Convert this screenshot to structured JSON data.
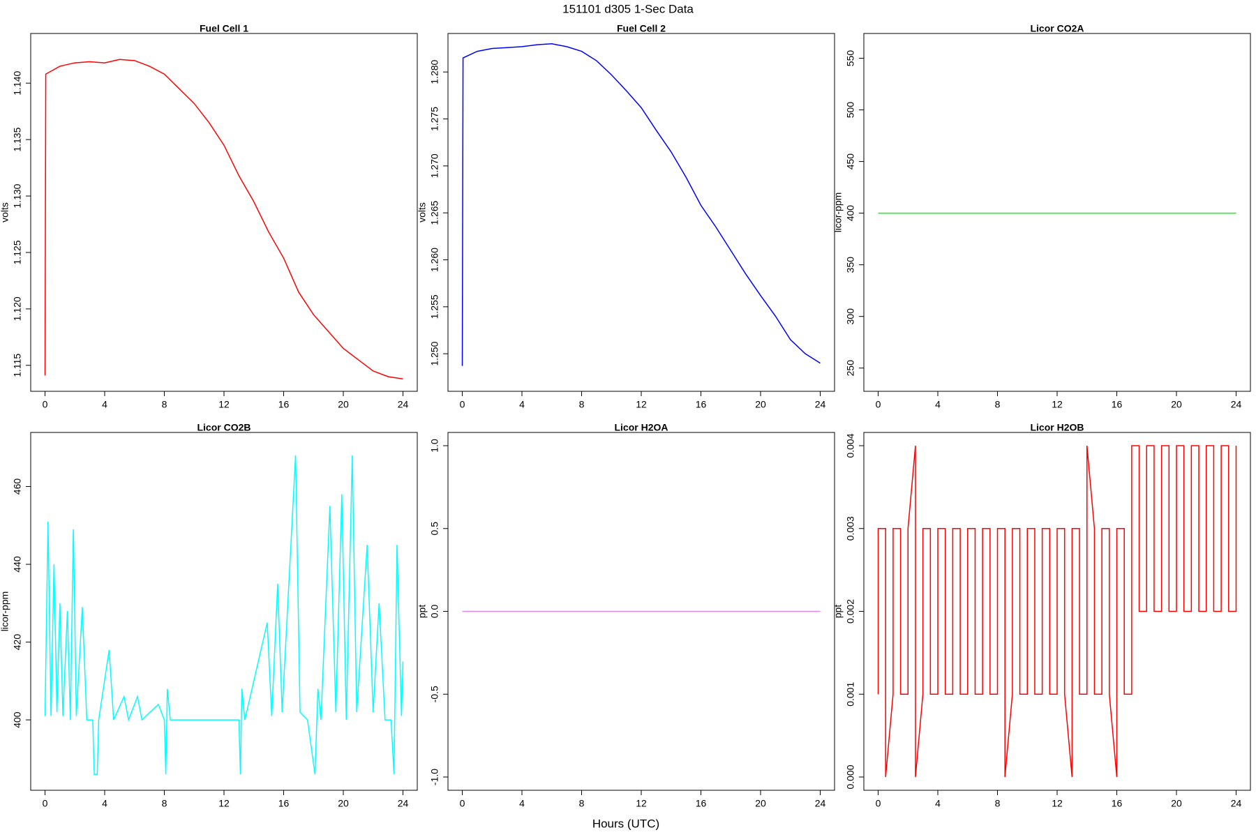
{
  "title": "151101   d305   1-Sec Data",
  "xlabel": "Hours (UTC)",
  "chart_data": [
    {
      "type": "line",
      "title": "Fuel Cell 1",
      "ylabel": "volts",
      "color": "#ff0000",
      "x": [
        0,
        0.05,
        1,
        2,
        3,
        4,
        5,
        6,
        7,
        8,
        9,
        10,
        11,
        12,
        13,
        14,
        15,
        16,
        17,
        18,
        19,
        20,
        21,
        22,
        23,
        24
      ],
      "values": [
        1.1141,
        1.1408,
        1.1415,
        1.1418,
        1.1419,
        1.1418,
        1.1421,
        1.142,
        1.1415,
        1.1408,
        1.1395,
        1.1382,
        1.1365,
        1.1345,
        1.1318,
        1.1295,
        1.1268,
        1.1245,
        1.1215,
        1.1195,
        1.118,
        1.1165,
        1.1155,
        1.1145,
        1.114,
        1.1138
      ],
      "xlim": [
        -0.96,
        24.96
      ],
      "xticks": [
        0,
        4,
        8,
        12,
        16,
        20,
        24
      ],
      "ylim": [
        1.1127,
        1.1444
      ],
      "yticks": [
        1.115,
        {
          "value": 1.12,
          "label": "1.120"
        },
        1.125,
        {
          "value": 1.13,
          "label": "1.130"
        },
        1.135,
        {
          "value": 1.14,
          "label": "1.140"
        }
      ]
    },
    {
      "type": "line",
      "title": "Fuel Cell 2",
      "ylabel": "volts",
      "color": "#0000ff",
      "x": [
        0,
        0.05,
        1,
        2,
        3,
        4,
        5,
        6,
        7,
        8,
        9,
        10,
        11,
        12,
        13,
        14,
        15,
        16,
        17,
        18,
        19,
        20,
        21,
        22,
        23,
        24
      ],
      "values": [
        1.2487,
        1.2815,
        1.2822,
        1.2825,
        1.2826,
        1.2827,
        1.2829,
        1.283,
        1.2827,
        1.2822,
        1.2812,
        1.2797,
        1.278,
        1.2762,
        1.2738,
        1.2715,
        1.2688,
        1.2658,
        1.2635,
        1.261,
        1.2585,
        1.2562,
        1.254,
        1.2515,
        1.25,
        1.249
      ],
      "xlim": [
        -0.96,
        24.96
      ],
      "xticks": [
        0,
        4,
        8,
        12,
        16,
        20,
        24
      ],
      "ylim": [
        1.246,
        1.2841
      ],
      "yticks": [
        {
          "value": 1.25,
          "label": "1.250"
        },
        1.255,
        {
          "value": 1.26,
          "label": "1.260"
        },
        1.265,
        {
          "value": 1.27,
          "label": "1.270"
        },
        1.275,
        {
          "value": 1.28,
          "label": "1.280"
        }
      ]
    },
    {
      "type": "line",
      "title": "Licor CO2A",
      "ylabel": "licor-ppm",
      "color": "#00ff00",
      "x": [
        0,
        24
      ],
      "values": [
        400,
        400
      ],
      "xlim": [
        -0.96,
        24.96
      ],
      "xticks": [
        0,
        4,
        8,
        12,
        16,
        20,
        24
      ],
      "ylim": [
        227.5,
        574
      ],
      "yticks": [
        250,
        300,
        350,
        400,
        450,
        500,
        550
      ]
    },
    {
      "type": "line",
      "title": "Licor CO2B",
      "ylabel": "licor-ppm",
      "color": "#00ffff",
      "x": [
        0,
        0.2,
        0.4,
        0.6,
        0.8,
        1,
        1.2,
        1.5,
        1.7,
        1.9,
        2.1,
        2.5,
        2.8,
        3.2,
        3.3,
        3.5,
        3.6,
        4.3,
        4.6,
        5.3,
        5.6,
        6.2,
        6.5,
        7.6,
        8,
        8.1,
        8.2,
        8.4,
        13,
        13.1,
        13.2,
        13.4,
        14.9,
        15.2,
        15.6,
        15.9,
        16.8,
        17.1,
        17.6,
        18.1,
        18.3,
        18.5,
        19.1,
        19.5,
        19.9,
        20.2,
        20.6,
        20.9,
        21.6,
        22,
        22.4,
        22.8,
        23.2,
        23.4,
        23.6,
        23.9,
        24
      ],
      "values": [
        401,
        451,
        401,
        440,
        402,
        430,
        401,
        428,
        400,
        449,
        401,
        429,
        400,
        400,
        386,
        386,
        400,
        418,
        400,
        406,
        400,
        406,
        400,
        404,
        400,
        386,
        408,
        400,
        400,
        386,
        408,
        400,
        425,
        401,
        435,
        402,
        468,
        402,
        400,
        386,
        408,
        400,
        455,
        402,
        458,
        400,
        468,
        402,
        445,
        402,
        430,
        400,
        400,
        386,
        445,
        401,
        415
      ],
      "xlim": [
        -0.96,
        24.96
      ],
      "xticks": [
        0,
        4,
        8,
        12,
        16,
        20,
        24
      ],
      "ylim": [
        381.9,
        473.9
      ],
      "yticks": [
        400,
        420,
        440,
        460
      ]
    },
    {
      "type": "line",
      "title": "Licor H2OA",
      "ylabel": "ppt",
      "color": "#dd88ee",
      "x": [
        0,
        24
      ],
      "values": [
        0,
        0
      ],
      "xlim": [
        -0.96,
        24.96
      ],
      "xticks": [
        0,
        4,
        8,
        12,
        16,
        20,
        24
      ],
      "ylim": [
        -1.08,
        1.08
      ],
      "yticks": [
        {
          "value": -1,
          "label": "-1.0"
        },
        -0.5,
        {
          "value": 0,
          "label": "0.0"
        },
        0.5,
        {
          "value": 1,
          "label": "1.0"
        }
      ]
    },
    {
      "type": "line",
      "title": "Licor H2OB",
      "ylabel": "ppt",
      "color": "#ff0000",
      "x": [
        0,
        0,
        0.5,
        0.5,
        1,
        1,
        1.5,
        1.5,
        2,
        2,
        2.5,
        2.5,
        3,
        3,
        3.5,
        3.5,
        4,
        4,
        4.5,
        4.5,
        5,
        5,
        5.5,
        5.5,
        6,
        6,
        6.5,
        6.5,
        7,
        7,
        7.5,
        7.5,
        8,
        8,
        8.5,
        8.5,
        9,
        9,
        9.5,
        9.5,
        10,
        10,
        10.5,
        10.5,
        11,
        11,
        11.5,
        11.5,
        12,
        12,
        12.5,
        12.5,
        13,
        13,
        13.5,
        13.5,
        14,
        14,
        14.5,
        14.5,
        15,
        15,
        15.5,
        15.5,
        16,
        16,
        16.5,
        16.5,
        17,
        17,
        17.5,
        17.5,
        18,
        18,
        18.5,
        18.5,
        19,
        19,
        19.5,
        19.5,
        20,
        20,
        20.5,
        20.5,
        21,
        21,
        21.5,
        21.5,
        22,
        22,
        22.5,
        22.5,
        23,
        23,
        23.5,
        23.5,
        24,
        24
      ],
      "values": [
        0.001,
        0.003,
        0.003,
        0,
        0.001,
        0.003,
        0.003,
        0.001,
        0.001,
        0.003,
        0.004,
        0,
        0.001,
        0.003,
        0.003,
        0.001,
        0.001,
        0.003,
        0.003,
        0.001,
        0.001,
        0.003,
        0.003,
        0.001,
        0.001,
        0.003,
        0.003,
        0.001,
        0.001,
        0.003,
        0.003,
        0.001,
        0.001,
        0.003,
        0.003,
        0,
        0.001,
        0.003,
        0.003,
        0.001,
        0.001,
        0.003,
        0.003,
        0.001,
        0.001,
        0.003,
        0.003,
        0.001,
        0.001,
        0.003,
        0.003,
        0.001,
        0,
        0.003,
        0.003,
        0.001,
        0.001,
        0.004,
        0.003,
        0.001,
        0.001,
        0.003,
        0.003,
        0.001,
        0,
        0.003,
        0.003,
        0.001,
        0.001,
        0.004,
        0.004,
        0.002,
        0.002,
        0.004,
        0.004,
        0.002,
        0.002,
        0.004,
        0.004,
        0.002,
        0.002,
        0.004,
        0.004,
        0.002,
        0.002,
        0.004,
        0.004,
        0.002,
        0.002,
        0.004,
        0.004,
        0.002,
        0.002,
        0.004,
        0.004,
        0.002,
        0.002,
        0.004
      ],
      "xlim": [
        -0.96,
        24.96
      ],
      "xticks": [
        0,
        4,
        8,
        12,
        16,
        20,
        24
      ],
      "ylim": [
        -0.00016,
        0.00416
      ],
      "yticks": [
        {
          "value": 0,
          "label": "0.000"
        },
        0.001,
        0.002,
        0.003,
        0.004
      ]
    }
  ]
}
